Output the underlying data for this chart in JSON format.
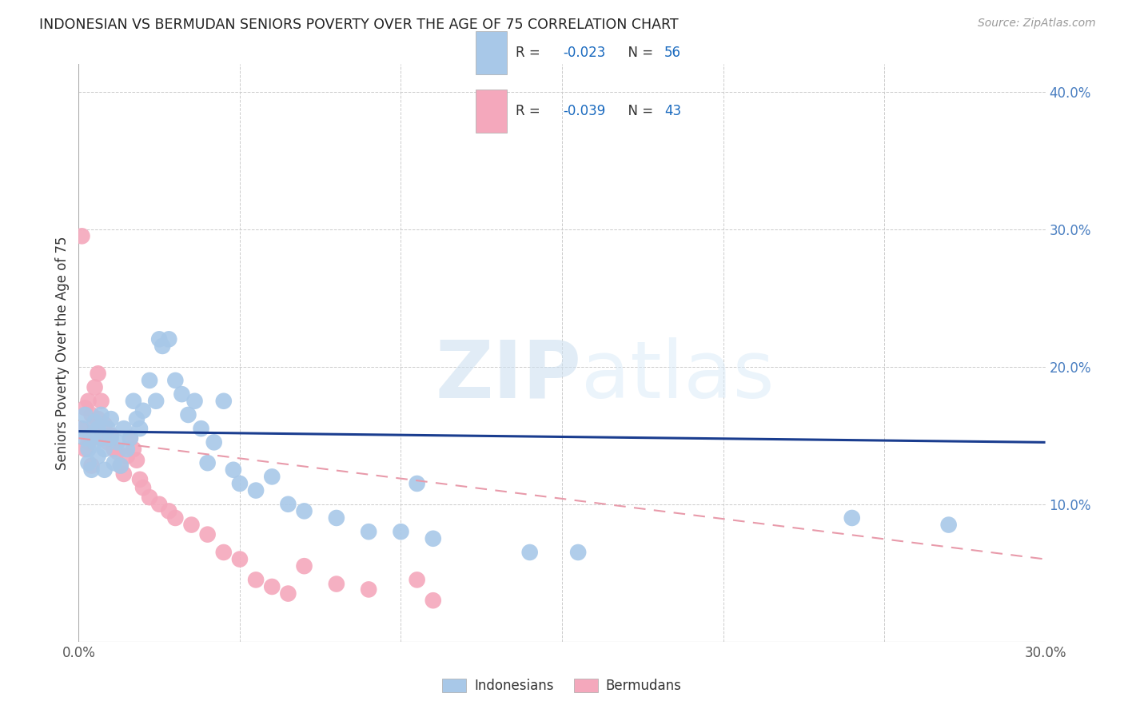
{
  "title": "INDONESIAN VS BERMUDAN SENIORS POVERTY OVER THE AGE OF 75 CORRELATION CHART",
  "source": "Source: ZipAtlas.com",
  "ylabel": "Seniors Poverty Over the Age of 75",
  "xlim": [
    0.0,
    0.3
  ],
  "ylim": [
    0.0,
    0.42
  ],
  "xtick_positions": [
    0.0,
    0.3
  ],
  "xtick_labels": [
    "0.0%",
    "30.0%"
  ],
  "ytick_positions": [
    0.1,
    0.2,
    0.3,
    0.4
  ],
  "ytick_labels": [
    "10.0%",
    "20.0%",
    "30.0%",
    "40.0%"
  ],
  "grid_yticks": [
    0.1,
    0.2,
    0.3,
    0.4
  ],
  "color_blue": "#a8c8e8",
  "color_pink": "#f4a8bc",
  "line_blue": "#1a3d8f",
  "line_pink": "#e89aaa",
  "indonesians_x": [
    0.001,
    0.002,
    0.002,
    0.003,
    0.003,
    0.004,
    0.004,
    0.005,
    0.005,
    0.006,
    0.006,
    0.007,
    0.007,
    0.008,
    0.008,
    0.009,
    0.01,
    0.01,
    0.011,
    0.012,
    0.013,
    0.014,
    0.015,
    0.016,
    0.017,
    0.018,
    0.019,
    0.02,
    0.022,
    0.024,
    0.025,
    0.026,
    0.028,
    0.03,
    0.032,
    0.034,
    0.036,
    0.038,
    0.04,
    0.042,
    0.045,
    0.048,
    0.05,
    0.055,
    0.06,
    0.065,
    0.07,
    0.08,
    0.09,
    0.1,
    0.105,
    0.11,
    0.14,
    0.155,
    0.24,
    0.27
  ],
  "indonesians_y": [
    0.155,
    0.165,
    0.148,
    0.14,
    0.13,
    0.15,
    0.125,
    0.16,
    0.145,
    0.135,
    0.155,
    0.148,
    0.165,
    0.14,
    0.125,
    0.155,
    0.148,
    0.162,
    0.13,
    0.145,
    0.128,
    0.155,
    0.14,
    0.148,
    0.175,
    0.162,
    0.155,
    0.168,
    0.19,
    0.175,
    0.22,
    0.215,
    0.22,
    0.19,
    0.18,
    0.165,
    0.175,
    0.155,
    0.13,
    0.145,
    0.175,
    0.125,
    0.115,
    0.11,
    0.12,
    0.1,
    0.095,
    0.09,
    0.08,
    0.08,
    0.115,
    0.075,
    0.065,
    0.065,
    0.09,
    0.085
  ],
  "bermudans_x": [
    0.001,
    0.001,
    0.002,
    0.002,
    0.003,
    0.003,
    0.004,
    0.004,
    0.005,
    0.005,
    0.006,
    0.006,
    0.007,
    0.007,
    0.008,
    0.009,
    0.01,
    0.011,
    0.012,
    0.013,
    0.014,
    0.015,
    0.016,
    0.017,
    0.018,
    0.019,
    0.02,
    0.022,
    0.025,
    0.028,
    0.03,
    0.035,
    0.04,
    0.045,
    0.05,
    0.055,
    0.06,
    0.065,
    0.07,
    0.08,
    0.09,
    0.105,
    0.11
  ],
  "bermudans_y": [
    0.295,
    0.155,
    0.17,
    0.14,
    0.175,
    0.145,
    0.165,
    0.128,
    0.185,
    0.158,
    0.195,
    0.162,
    0.175,
    0.148,
    0.158,
    0.145,
    0.15,
    0.14,
    0.138,
    0.128,
    0.122,
    0.135,
    0.148,
    0.14,
    0.132,
    0.118,
    0.112,
    0.105,
    0.1,
    0.095,
    0.09,
    0.085,
    0.078,
    0.065,
    0.06,
    0.045,
    0.04,
    0.035,
    0.055,
    0.042,
    0.038,
    0.045,
    0.03
  ],
  "indo_trend_x": [
    0.0,
    0.3
  ],
  "indo_trend_y": [
    0.153,
    0.145
  ],
  "berm_trend_x": [
    0.0,
    0.3
  ],
  "berm_trend_y": [
    0.148,
    0.06
  ],
  "watermark_zip": "ZIP",
  "watermark_atlas": "atlas",
  "background_color": "#ffffff",
  "grid_color": "#cccccc"
}
